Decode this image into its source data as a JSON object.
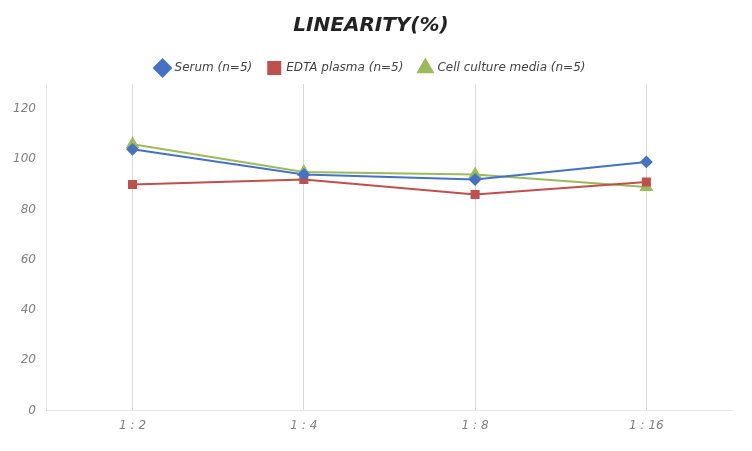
{
  "chart_data": {
    "type": "line",
    "title": "LINEARITY(%)",
    "categories": [
      "1 : 2",
      "1 : 4",
      "1 : 8",
      "1 : 16"
    ],
    "series": [
      {
        "name": "Serum (n=5)",
        "color": "#4472C4",
        "marker": "diamond",
        "values": [
          104,
          94,
          92,
          99
        ]
      },
      {
        "name": "EDTA plasma (n=5)",
        "color": "#C0504D",
        "marker": "square",
        "values": [
          90,
          92,
          86,
          91
        ]
      },
      {
        "name": "Cell culture media (n=5)",
        "color": "#9BBB59",
        "marker": "triangle",
        "values": [
          106,
          95,
          94,
          89
        ]
      }
    ],
    "ylim": [
      0,
      130
    ],
    "yticks": [
      0,
      20,
      40,
      60,
      80,
      100,
      120
    ],
    "grid": true,
    "legend": "top"
  }
}
